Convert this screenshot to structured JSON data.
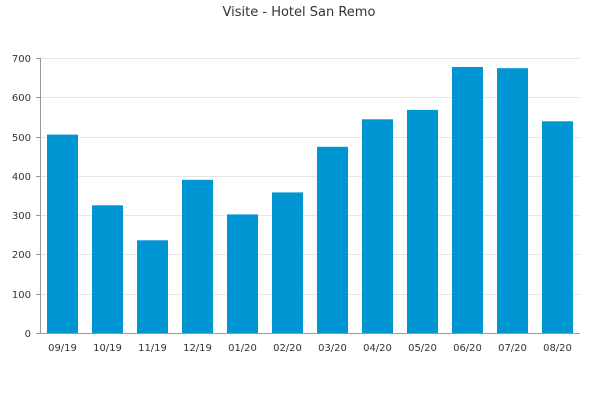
{
  "chart_data": {
    "type": "bar",
    "title": "Visite - Hotel San Remo",
    "xlabel": "",
    "ylabel": "",
    "categories": [
      "09/19",
      "10/19",
      "11/19",
      "12/19",
      "01/20",
      "02/20",
      "03/20",
      "04/20",
      "05/20",
      "06/20",
      "07/20",
      "08/20"
    ],
    "values": [
      505,
      325,
      236,
      390,
      302,
      358,
      474,
      544,
      568,
      677,
      674,
      539
    ],
    "ylim": [
      0,
      700
    ],
    "yticks": [
      "0",
      "100",
      "200",
      "300",
      "400",
      "500",
      "600",
      "700"
    ],
    "grid": true,
    "legend": "none",
    "bar_color": "#0095d3"
  }
}
